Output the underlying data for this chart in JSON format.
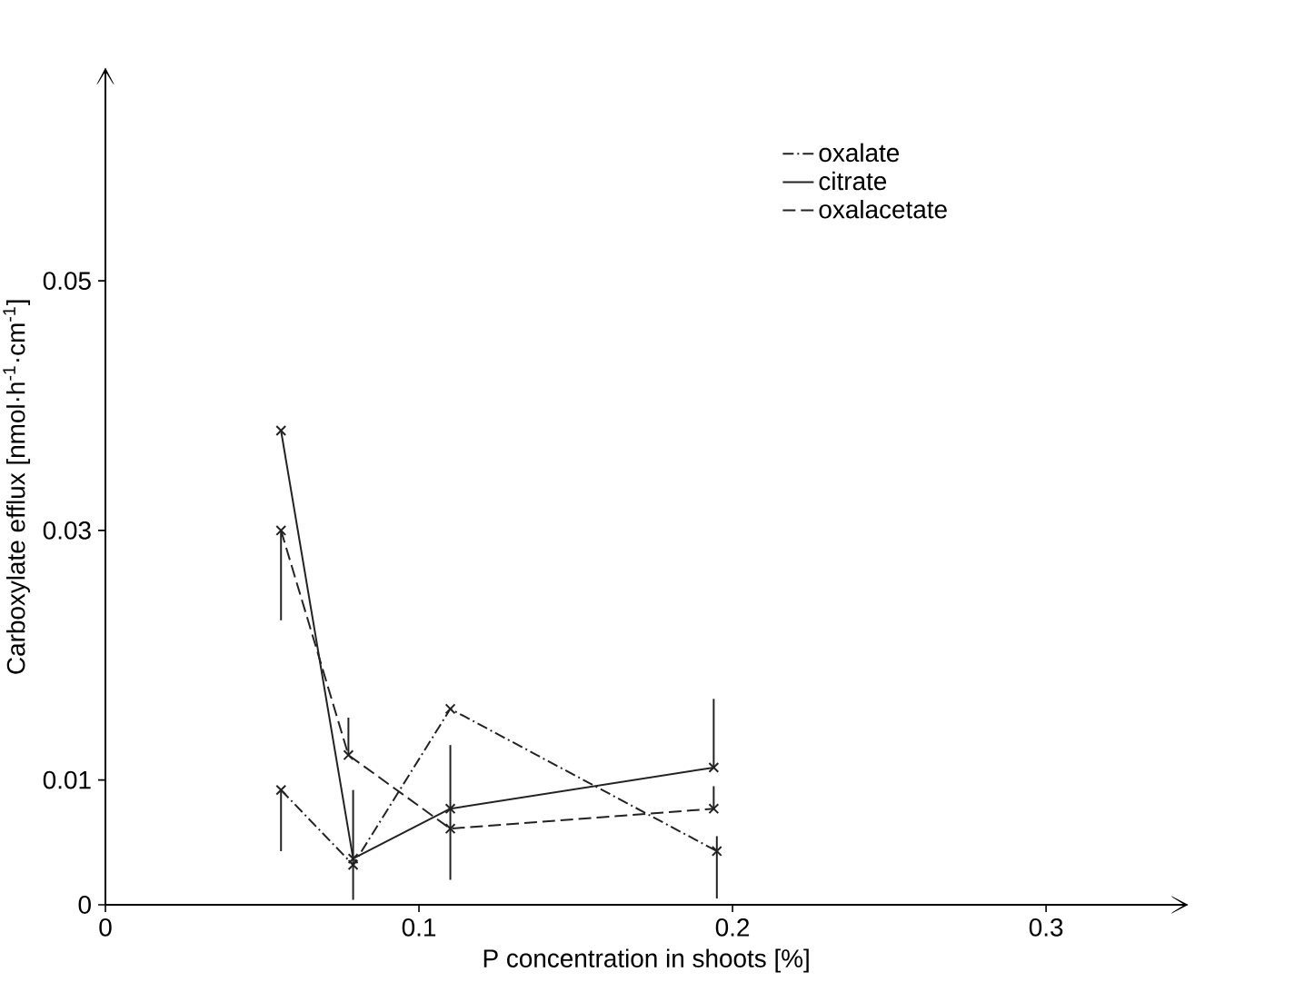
{
  "chart_data": {
    "type": "line",
    "xlabel": "P concentration in shoots [%]",
    "ylabel": "Carboxylate efflux [nmol·h$^{-1}$·cm$^{-1}$]",
    "xlim": [
      0,
      0.345
    ],
    "ylim": [
      0,
      0.067
    ],
    "xticks": [
      0,
      0.1,
      0.2,
      0.3
    ],
    "yticks": [
      0,
      0.01,
      0.03,
      0.05
    ],
    "marker": "cross",
    "grid": false,
    "legend": "top right",
    "series": [
      {
        "name": "oxalate",
        "color": "#222222",
        "line_style": "dashdot",
        "x": [
          0.056,
          0.079,
          0.11,
          0.195
        ],
        "values": [
          0.0092,
          0.0032,
          0.0157,
          0.0043
        ],
        "errors": [
          [
            0.0043,
            0.0092
          ],
          null,
          null,
          [
            0.0005,
            0.0055
          ]
        ]
      },
      {
        "name": "citrate",
        "color": "#222222",
        "line_style": "solid",
        "x": [
          0.056,
          0.079,
          0.11,
          0.194
        ],
        "values": [
          0.038,
          0.0037,
          0.0077,
          0.011
        ],
        "errors": [
          null,
          [
            0.0004,
            0.0092
          ],
          [
            0.002,
            0.0128
          ],
          [
            0.011,
            0.0165
          ]
        ]
      },
      {
        "name": "oxalacetate",
        "color": "#222222",
        "line_style": "dashed",
        "x": [
          0.056,
          0.0775,
          0.11,
          0.194
        ],
        "values": [
          0.03,
          0.012,
          0.0061,
          0.0077
        ],
        "errors": [
          [
            0.0228,
            0.03
          ],
          [
            0.012,
            0.015
          ],
          null,
          [
            0.0077,
            0.0095
          ]
        ]
      }
    ]
  }
}
